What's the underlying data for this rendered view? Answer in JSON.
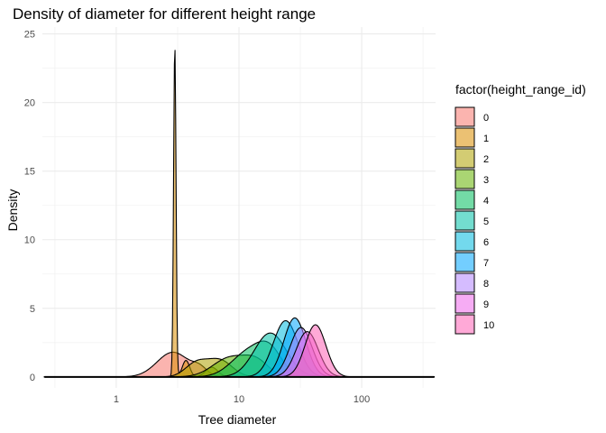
{
  "chart_data": {
    "type": "area",
    "title": "Density of diameter for different height range",
    "xlabel": "Tree diameter",
    "ylabel": "Density",
    "x_scale": "log10",
    "xlim": [
      0.25,
      400
    ],
    "ylim": [
      -0.8,
      25.5
    ],
    "x_ticks": [
      1,
      10,
      100
    ],
    "x_tick_labels": [
      "1",
      "10",
      "100"
    ],
    "y_ticks": [
      0,
      5,
      10,
      15,
      20,
      25
    ],
    "y_tick_labels": [
      "0",
      "5",
      "10",
      "15",
      "20",
      "25"
    ],
    "grid": true,
    "legend": {
      "title": "factor(height_range_id)",
      "position": "right",
      "entries": [
        "0",
        "1",
        "2",
        "3",
        "4",
        "5",
        "6",
        "7",
        "8",
        "9",
        "10"
      ]
    },
    "series": [
      {
        "name": "0",
        "color": "#F8766D",
        "peaks": [
          {
            "x": 2.9,
            "h": 1.8,
            "w": 0.13
          },
          {
            "x": 4.8,
            "h": 0.5,
            "w": 0.06
          }
        ]
      },
      {
        "name": "1",
        "color": "#DB8E00",
        "peaks": [
          {
            "x": 3.0,
            "h": 24.2,
            "w": 0.01
          },
          {
            "x": 3.7,
            "h": 1.2,
            "w": 0.03
          },
          {
            "x": 6.0,
            "h": 0.7,
            "w": 0.05
          }
        ]
      },
      {
        "name": "2",
        "color": "#AEA200",
        "peaks": [
          {
            "x": 4.5,
            "h": 1.0,
            "w": 0.09
          },
          {
            "x": 7.0,
            "h": 1.2,
            "w": 0.1
          }
        ]
      },
      {
        "name": "3",
        "color": "#64B200",
        "peaks": [
          {
            "x": 8.5,
            "h": 1.4,
            "w": 0.14
          },
          {
            "x": 14.0,
            "h": 1.0,
            "w": 0.1
          }
        ]
      },
      {
        "name": "4",
        "color": "#00BD5C",
        "peaks": [
          {
            "x": 12.0,
            "h": 1.8,
            "w": 0.14
          },
          {
            "x": 18.0,
            "h": 1.6,
            "w": 0.1
          }
        ]
      },
      {
        "name": "5",
        "color": "#00C1A7",
        "peaks": [
          {
            "x": 18.0,
            "h": 3.2,
            "w": 0.13
          }
        ]
      },
      {
        "name": "6",
        "color": "#00BADE",
        "peaks": [
          {
            "x": 24.0,
            "h": 4.1,
            "w": 0.1
          }
        ]
      },
      {
        "name": "7",
        "color": "#00A6FF",
        "peaks": [
          {
            "x": 28.5,
            "h": 4.3,
            "w": 0.09
          }
        ]
      },
      {
        "name": "8",
        "color": "#B385FF",
        "peaks": [
          {
            "x": 32.0,
            "h": 3.6,
            "w": 0.09
          }
        ]
      },
      {
        "name": "9",
        "color": "#EF67EB",
        "peaks": [
          {
            "x": 36.0,
            "h": 3.3,
            "w": 0.09
          }
        ]
      },
      {
        "name": "10",
        "color": "#FF63B6",
        "peaks": [
          {
            "x": 42.0,
            "h": 3.8,
            "w": 0.085
          }
        ]
      }
    ]
  }
}
